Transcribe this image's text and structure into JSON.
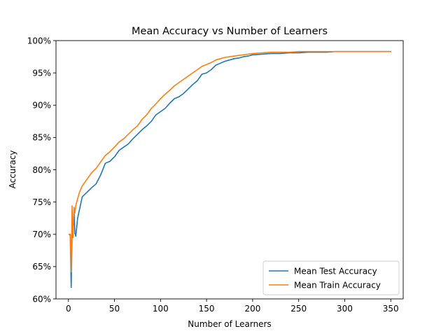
{
  "chart_data": {
    "type": "line",
    "title": "Mean Accuracy vs Number of Learners",
    "xlabel": "Number of Learners",
    "ylabel": "Accuracy",
    "xlim": [
      -13.5,
      363.5
    ],
    "ylim": [
      0.6,
      1.0
    ],
    "xticks": [
      0,
      50,
      100,
      150,
      200,
      250,
      300,
      350
    ],
    "xtick_labels": [
      "0",
      "50",
      "100",
      "150",
      "200",
      "250",
      "300",
      "350"
    ],
    "yticks": [
      0.6,
      0.65,
      0.7,
      0.75,
      0.8,
      0.85,
      0.9,
      0.95,
      1.0
    ],
    "ytick_labels": [
      "60%",
      "65%",
      "70%",
      "75%",
      "80%",
      "85%",
      "90%",
      "95%",
      "100%"
    ],
    "grid": false,
    "legend_position": "lower-right",
    "series": [
      {
        "name": "Mean Test Accuracy",
        "color": "#1f77b4",
        "x": [
          1,
          2,
          3,
          4,
          5,
          6,
          7,
          8,
          10,
          12,
          15,
          20,
          25,
          30,
          35,
          40,
          45,
          50,
          55,
          60,
          65,
          70,
          75,
          80,
          85,
          90,
          95,
          100,
          105,
          110,
          115,
          120,
          125,
          130,
          135,
          140,
          145,
          150,
          155,
          160,
          165,
          170,
          175,
          180,
          185,
          190,
          195,
          200,
          210,
          220,
          230,
          240,
          250,
          260,
          270,
          280,
          290,
          300,
          310,
          320,
          330,
          340,
          350
        ],
        "y": [
          0.7,
          0.698,
          0.618,
          0.705,
          0.7,
          0.737,
          0.702,
          0.697,
          0.725,
          0.738,
          0.758,
          0.765,
          0.772,
          0.778,
          0.792,
          0.81,
          0.813,
          0.82,
          0.83,
          0.835,
          0.84,
          0.848,
          0.855,
          0.862,
          0.868,
          0.875,
          0.885,
          0.89,
          0.895,
          0.903,
          0.91,
          0.913,
          0.918,
          0.925,
          0.932,
          0.938,
          0.948,
          0.95,
          0.955,
          0.962,
          0.965,
          0.968,
          0.97,
          0.972,
          0.973,
          0.975,
          0.976,
          0.978,
          0.979,
          0.98,
          0.98,
          0.981,
          0.981,
          0.982,
          0.982,
          0.982,
          0.983,
          0.983,
          0.983,
          0.983,
          0.983,
          0.983,
          0.983
        ]
      },
      {
        "name": "Mean Train Accuracy",
        "color": "#ff7f0e",
        "x": [
          1,
          2,
          3,
          4,
          5,
          6,
          7,
          8,
          10,
          12,
          15,
          20,
          25,
          30,
          35,
          40,
          45,
          50,
          55,
          60,
          65,
          70,
          75,
          80,
          85,
          90,
          95,
          100,
          105,
          110,
          115,
          120,
          125,
          130,
          135,
          140,
          145,
          150,
          155,
          160,
          165,
          170,
          175,
          180,
          185,
          190,
          195,
          200,
          210,
          220,
          230,
          240,
          250,
          260,
          270,
          280,
          290,
          300,
          310,
          320,
          330,
          340,
          350
        ],
        "y": [
          0.7,
          0.7,
          0.642,
          0.744,
          0.695,
          0.742,
          0.733,
          0.745,
          0.755,
          0.765,
          0.775,
          0.785,
          0.795,
          0.802,
          0.812,
          0.822,
          0.828,
          0.835,
          0.843,
          0.848,
          0.855,
          0.862,
          0.868,
          0.878,
          0.885,
          0.895,
          0.902,
          0.91,
          0.917,
          0.923,
          0.93,
          0.935,
          0.94,
          0.945,
          0.95,
          0.955,
          0.96,
          0.963,
          0.966,
          0.97,
          0.972,
          0.974,
          0.975,
          0.976,
          0.977,
          0.978,
          0.979,
          0.98,
          0.981,
          0.982,
          0.982,
          0.982,
          0.983,
          0.983,
          0.983,
          0.983,
          0.983,
          0.983,
          0.983,
          0.983,
          0.983,
          0.983,
          0.983
        ]
      }
    ]
  }
}
